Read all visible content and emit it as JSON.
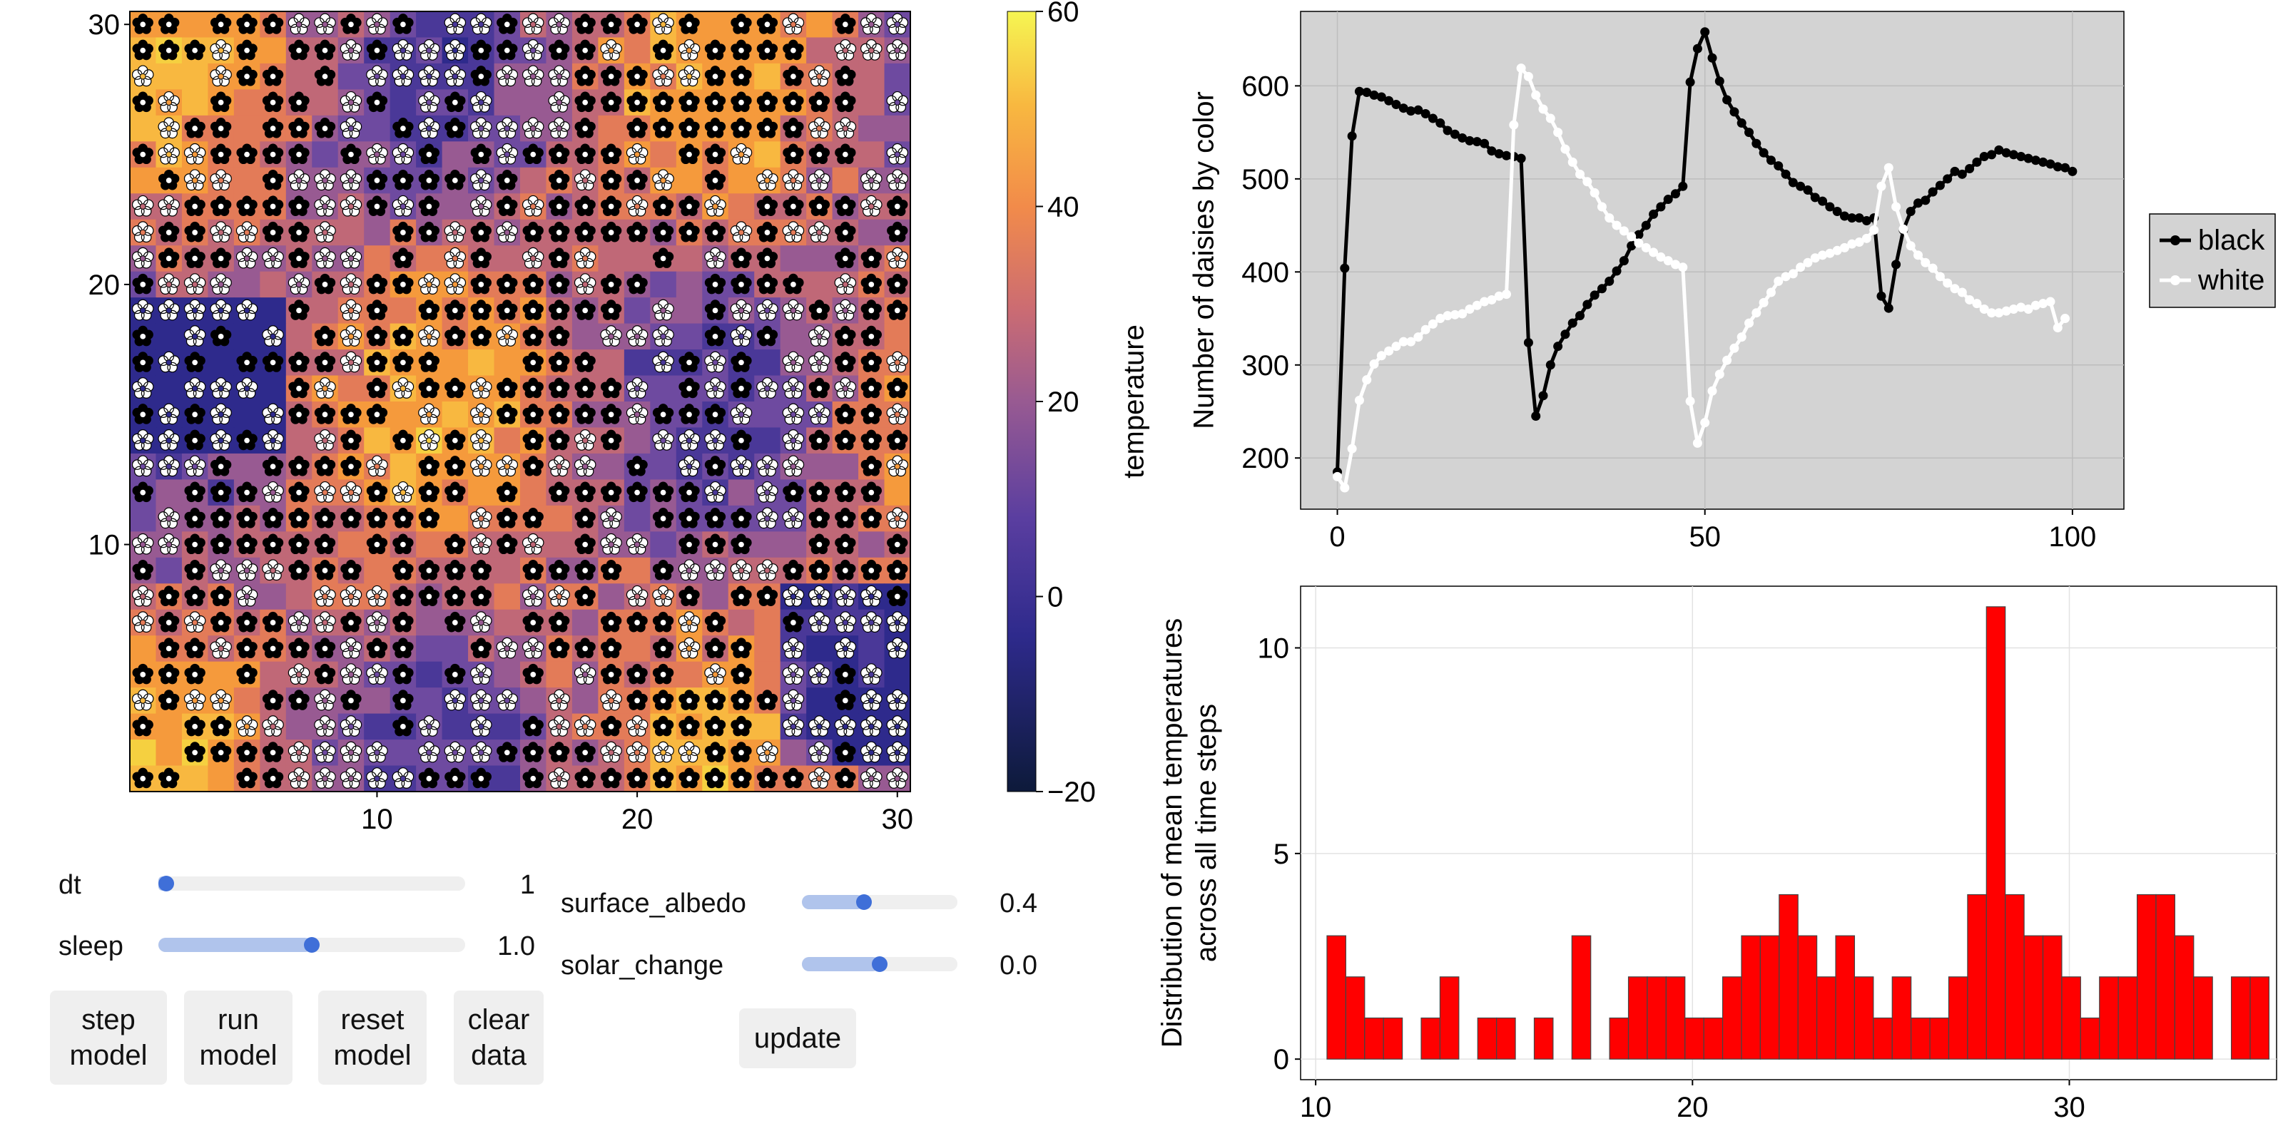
{
  "heatmap": {
    "xticks": [
      "10",
      "20",
      "30"
    ],
    "yticks": [
      "10",
      "20",
      "30"
    ],
    "grid_size": 30,
    "colorbar": {
      "label": "temperature",
      "ticks": [
        "60",
        "40",
        "20",
        "0",
        "−20"
      ],
      "range": [
        -20,
        60
      ]
    }
  },
  "controls": {
    "sliders": [
      {
        "label": "dt",
        "value_text": "1",
        "fraction": 0.0
      },
      {
        "label": "sleep",
        "value_text": "1.0",
        "fraction": 0.5
      },
      {
        "label": "surface_albedo",
        "value_text": "0.4",
        "fraction": 0.4
      },
      {
        "label": "solar_change",
        "value_text": "0.0",
        "fraction": 0.5
      }
    ],
    "buttons": {
      "step": "step\nmodel",
      "run": "run\nmodel",
      "reset": "reset\nmodel",
      "clear": "clear\ndata",
      "update": "update"
    }
  },
  "colors": {
    "black_series": "#000000",
    "white_series": "#ffffff",
    "histogram": "#ff0000",
    "panel_bg": "#d3d3d3"
  },
  "chart_data": [
    {
      "type": "line",
      "ylabel": "Number of daisies by color",
      "xlim": [
        -5,
        107
      ],
      "ylim": [
        145,
        680
      ],
      "xticks": [
        "0",
        "50",
        "100"
      ],
      "yticks": [
        "200",
        "300",
        "400",
        "500",
        "600"
      ],
      "legend_position": "right",
      "series": [
        {
          "name": "black",
          "color": "#000000",
          "values": [
            185,
            404,
            546,
            594,
            593,
            590,
            588,
            584,
            580,
            576,
            573,
            574,
            570,
            565,
            560,
            552,
            548,
            544,
            541,
            540,
            538,
            530,
            527,
            525,
            524,
            522,
            324,
            245,
            267,
            300,
            320,
            333,
            345,
            353,
            365,
            375,
            382,
            390,
            401,
            412,
            428,
            440,
            450,
            462,
            470,
            478,
            484,
            492,
            604,
            640,
            658,
            630,
            605,
            585,
            572,
            560,
            550,
            538,
            528,
            520,
            514,
            505,
            496,
            492,
            488,
            480,
            476,
            470,
            465,
            460,
            458,
            458,
            455,
            458,
            374,
            361,
            408,
            445,
            465,
            474,
            477,
            486,
            493,
            500,
            508,
            505,
            511,
            518,
            524,
            526,
            531,
            528,
            526,
            524,
            522,
            520,
            518,
            516,
            513,
            512,
            508
          ]
        },
        {
          "name": "white",
          "color": "#ffffff",
          "values": [
            180,
            168,
            210,
            262,
            284,
            301,
            310,
            315,
            320,
            325,
            325,
            330,
            338,
            344,
            350,
            353,
            354,
            355,
            360,
            364,
            368,
            370,
            374,
            376,
            558,
            619,
            610,
            590,
            575,
            565,
            550,
            532,
            518,
            505,
            497,
            485,
            470,
            458,
            450,
            444,
            438,
            431,
            426,
            421,
            416,
            412,
            408,
            405,
            261,
            216,
            238,
            272,
            290,
            305,
            318,
            330,
            345,
            356,
            367,
            378,
            390,
            395,
            398,
            405,
            410,
            415,
            418,
            420,
            423,
            426,
            430,
            432,
            436,
            445,
            492,
            512,
            470,
            446,
            428,
            418,
            410,
            404,
            395,
            388,
            382,
            378,
            370,
            366,
            360,
            356,
            356,
            358,
            360,
            362,
            360,
            364,
            366,
            368,
            340,
            350
          ]
        }
      ]
    },
    {
      "type": "bar",
      "ylabel": "Distribution of mean temperatures\nacross all time steps",
      "xlim": [
        9.6,
        35.5
      ],
      "ylim": [
        -0.5,
        11.5
      ],
      "xticks": [
        "10",
        "20",
        "30"
      ],
      "yticks": [
        "0",
        "5",
        "10"
      ],
      "bin_width": 0.5,
      "bin_start": 10.3,
      "values": [
        3,
        2,
        1,
        1,
        0,
        1,
        2,
        0,
        1,
        1,
        0,
        1,
        0,
        3,
        0,
        1,
        2,
        2,
        2,
        1,
        1,
        2,
        3,
        3,
        4,
        3,
        2,
        3,
        2,
        1,
        2,
        1,
        1,
        2,
        4,
        11,
        4,
        3,
        3,
        2,
        1,
        2,
        2,
        4,
        4,
        3,
        2,
        0,
        2,
        2
      ]
    }
  ]
}
